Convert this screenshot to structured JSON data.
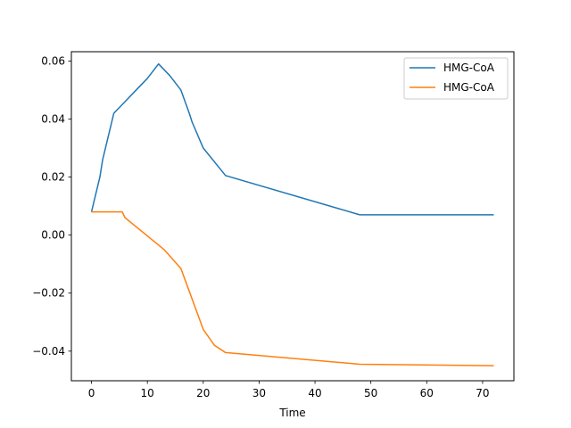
{
  "chart_data": {
    "type": "line",
    "title": "",
    "xlabel": "Time",
    "ylabel": "",
    "xlim": [
      -3.6,
      75.6
    ],
    "ylim": [
      -0.0502,
      0.0632
    ],
    "xticks": [
      0,
      10,
      20,
      30,
      40,
      50,
      60,
      70
    ],
    "yticks": [
      -0.04,
      -0.02,
      0.0,
      0.02,
      0.04,
      0.06
    ],
    "ytick_labels": [
      "−0.04",
      "−0.02",
      "0.00",
      "0.02",
      "0.04",
      "0.06"
    ],
    "grid": false,
    "legend_position": "top-right",
    "series": [
      {
        "name": "HMG-CoA",
        "color": "#1f77b4",
        "x": [
          0,
          1.5,
          2,
          4,
          6,
          8,
          10,
          12,
          14,
          16,
          17.5,
          18,
          20,
          24,
          48,
          60,
          72
        ],
        "y": [
          0.008,
          0.02,
          0.026,
          0.042,
          0.046,
          0.05,
          0.054,
          0.059,
          0.055,
          0.05,
          0.042,
          0.039,
          0.03,
          0.0205,
          0.007,
          0.007,
          0.007
        ]
      },
      {
        "name": "HMG-CoA",
        "color": "#ff7f0e",
        "x": [
          0,
          5.5,
          6,
          13,
          16,
          20,
          22,
          24,
          48,
          72
        ],
        "y": [
          0.008,
          0.008,
          0.006,
          -0.005,
          -0.0115,
          -0.0325,
          -0.038,
          -0.0405,
          -0.0445,
          -0.045
        ]
      }
    ]
  }
}
